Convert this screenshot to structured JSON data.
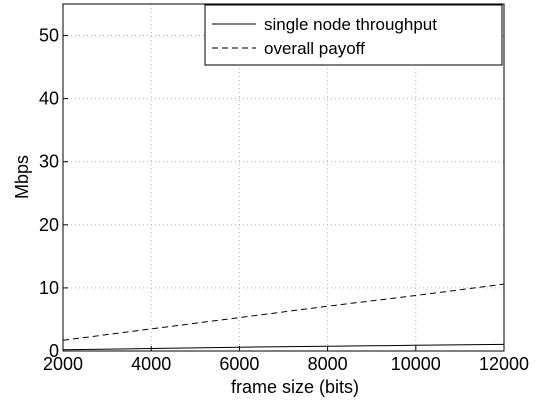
{
  "chart_data": {
    "type": "line",
    "xlabel": "frame size (bits)",
    "ylabel": "Mbps",
    "xlim": [
      2000,
      12000
    ],
    "ylim": [
      0,
      55
    ],
    "xticks": [
      2000,
      4000,
      6000,
      8000,
      10000,
      12000
    ],
    "yticks": [
      0,
      10,
      20,
      30,
      40,
      50
    ],
    "xtick_labels": [
      "2000",
      "4000",
      "6000",
      "8000",
      "10000",
      "12000"
    ],
    "ytick_labels": [
      "0",
      "10",
      "20",
      "30",
      "40",
      "50"
    ],
    "grid": true,
    "legend_position": "top-right",
    "series": [
      {
        "name": "single node throughput",
        "line_style": "solid",
        "color": "#000000",
        "x": [
          2000,
          4000,
          6000,
          8000,
          10000,
          12000
        ],
        "y": [
          0.2,
          0.4,
          0.6,
          0.75,
          0.9,
          1.05
        ]
      },
      {
        "name": "overall payoff",
        "line_style": "dashed",
        "color": "#000000",
        "x": [
          2000,
          4000,
          6000,
          8000,
          10000,
          12000
        ],
        "y": [
          1.7,
          3.5,
          5.3,
          7.1,
          8.8,
          10.6
        ]
      }
    ]
  }
}
